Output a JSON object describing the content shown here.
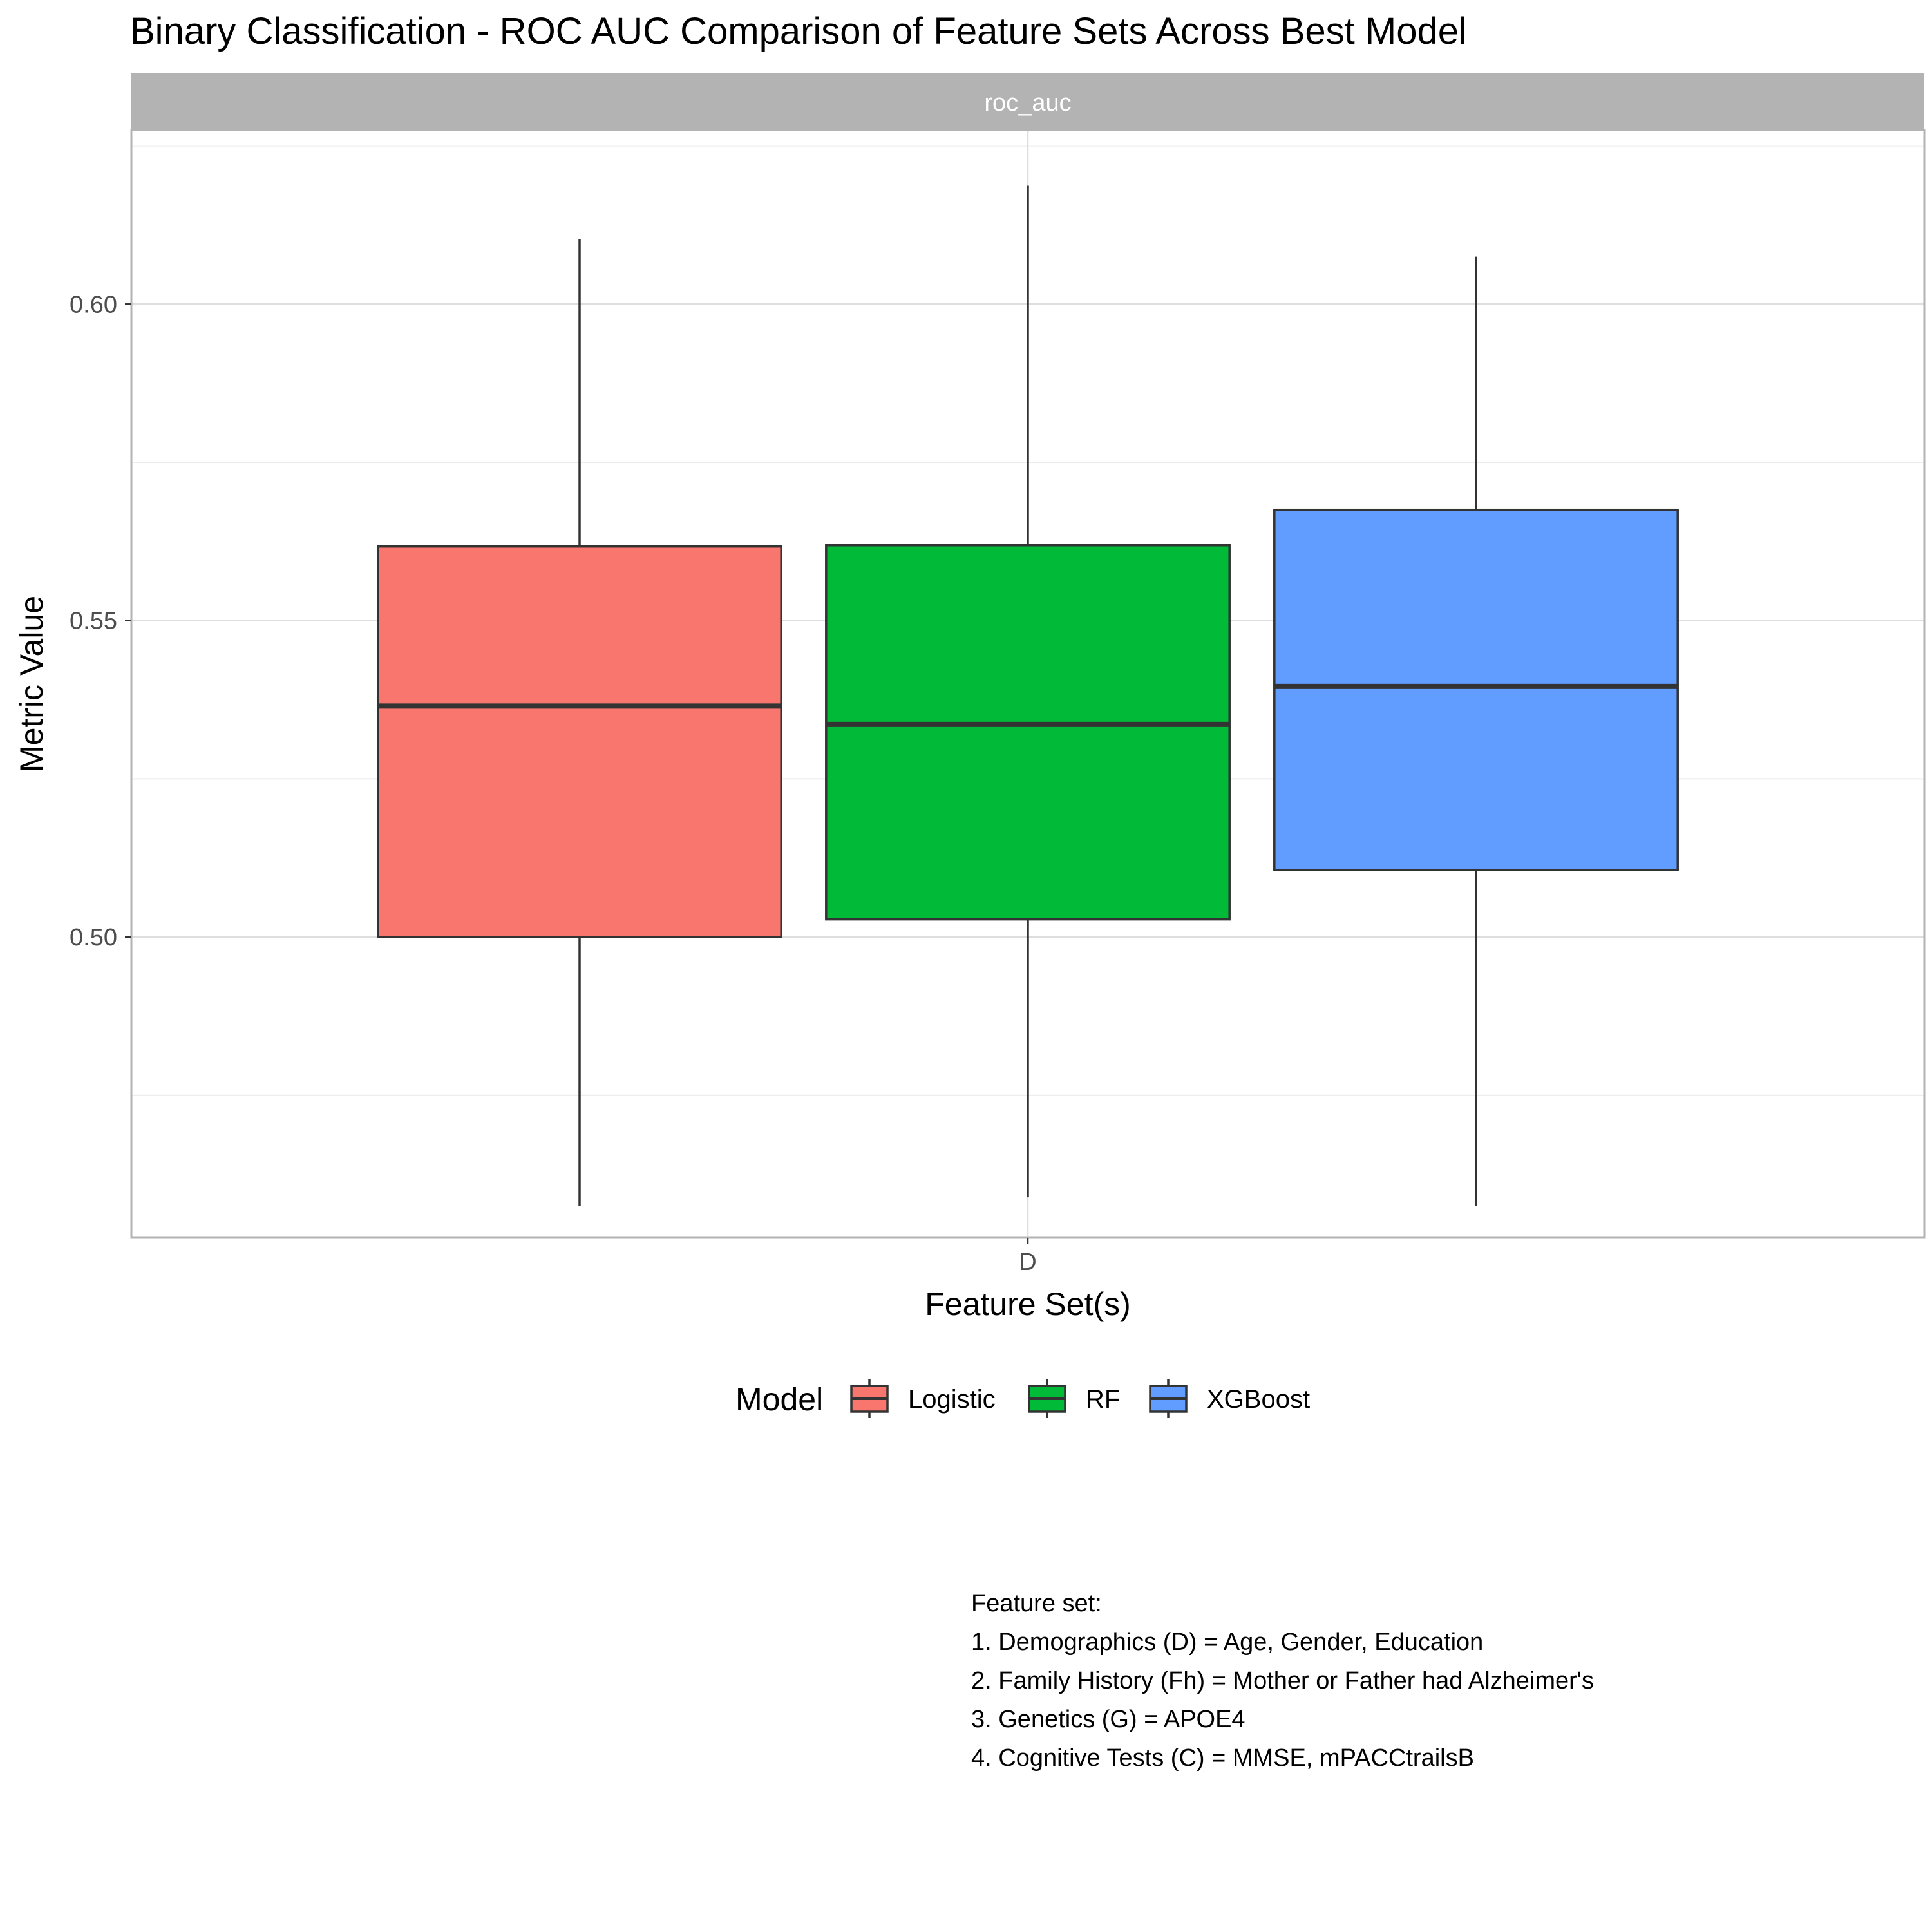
{
  "chart_data": {
    "type": "boxplot",
    "title": "Binary Classification - ROC AUC Comparison of Feature Sets Across Best Model",
    "facet_label": "roc_auc",
    "xlabel": "Feature Set(s)",
    "ylabel": "Metric Value",
    "categories": [
      "D"
    ],
    "ylim": [
      0.4525,
      0.6275
    ],
    "y_ticks": [
      0.5,
      0.55,
      0.6
    ],
    "y_tick_labels": [
      "0.50",
      "0.55",
      "0.60"
    ],
    "grid": true,
    "legend": {
      "title": "Model",
      "position": "bottom"
    },
    "series": [
      {
        "name": "Logistic",
        "color": "#F8766D",
        "category": "D",
        "min": 0.4575,
        "q1": 0.5,
        "median": 0.5365,
        "q3": 0.5617,
        "max": 0.6103
      },
      {
        "name": "RF",
        "color": "#00BA38",
        "category": "D",
        "min": 0.4589,
        "q1": 0.5028,
        "median": 0.5336,
        "q3": 0.5619,
        "max": 0.6187
      },
      {
        "name": "XGBoost",
        "color": "#619CFF",
        "category": "D",
        "min": 0.4575,
        "q1": 0.5106,
        "median": 0.5396,
        "q3": 0.5675,
        "max": 0.6075
      }
    ]
  },
  "caption": {
    "lines": [
      "Feature set:",
      "1. Demographics (D) = Age, Gender, Education",
      "2. Family History (Fh) = Mother or Father had Alzheimer's",
      "3. Genetics (G) = APOE4",
      "4. Cognitive Tests (C) = MMSE, mPACCtrailsB"
    ]
  }
}
